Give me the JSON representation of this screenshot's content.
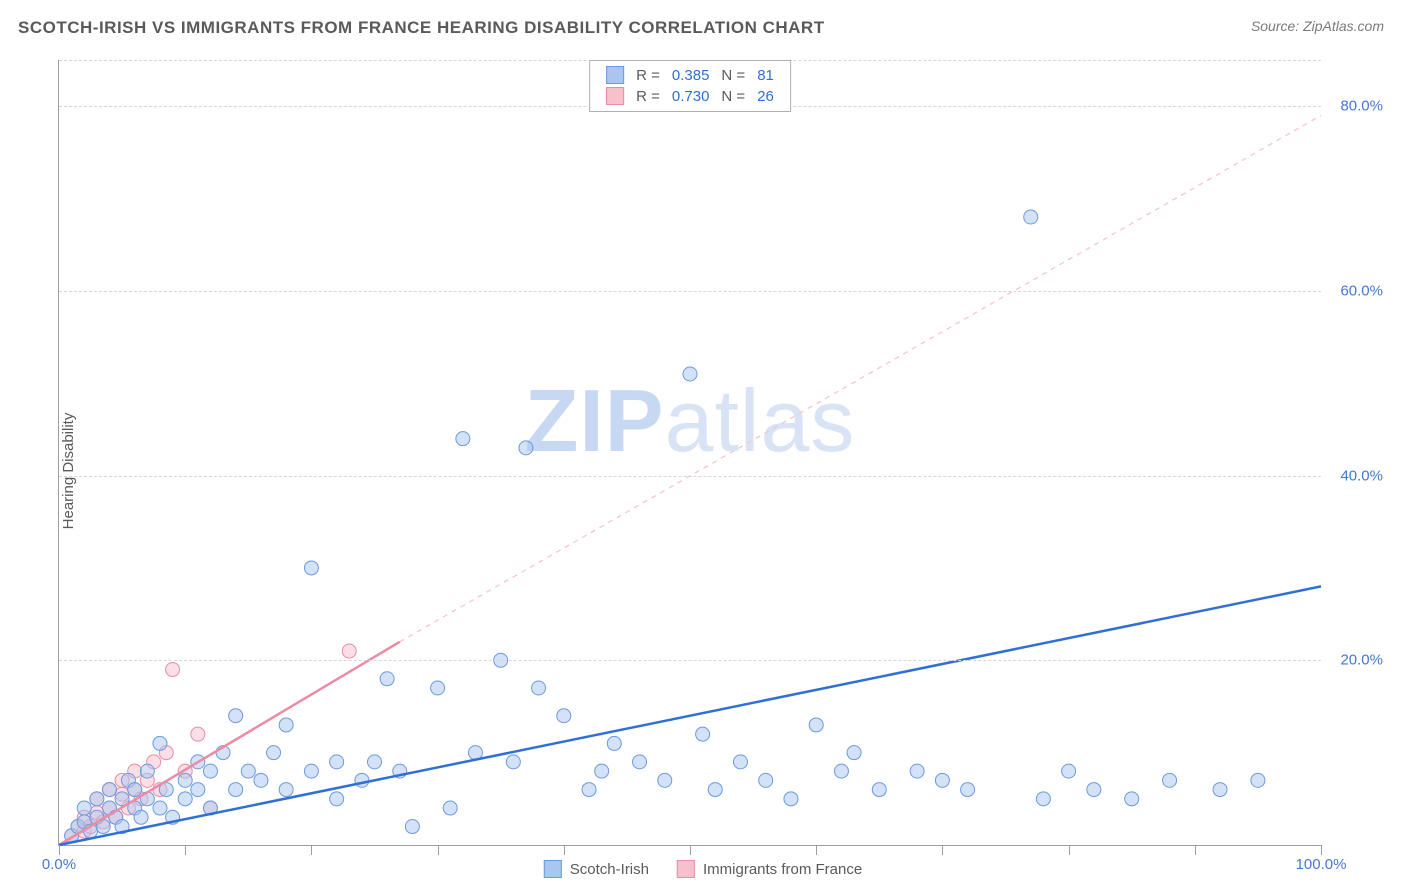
{
  "title": "SCOTCH-IRISH VS IMMIGRANTS FROM FRANCE HEARING DISABILITY CORRELATION CHART",
  "source": "Source: ZipAtlas.com",
  "ylabel": "Hearing Disability",
  "watermark": {
    "bold": "ZIP",
    "rest": "atlas"
  },
  "chart": {
    "type": "scatter",
    "xlim": [
      0,
      100
    ],
    "ylim": [
      0,
      85
    ],
    "yticks": [
      20,
      40,
      60,
      80
    ],
    "ytick_labels": [
      "20.0%",
      "40.0%",
      "60.0%",
      "80.0%"
    ],
    "xtick_positions": [
      0,
      10,
      20,
      30,
      40,
      50,
      60,
      70,
      80,
      90,
      100
    ],
    "xtick_labels_shown": {
      "0": "0.0%",
      "100": "100.0%"
    },
    "grid_color": "#d7d7d7",
    "axis_color": "#9e9e9e",
    "background": "#ffffff",
    "marker_radius": 7,
    "marker_opacity": 0.5,
    "series": [
      {
        "name": "Scotch-Irish",
        "color_fill": "#a9c6ef",
        "color_stroke": "#6a9ae0",
        "R": "0.385",
        "N": "81",
        "trend": {
          "color": "#2f6fd6",
          "width": 2.5,
          "dash": "none",
          "x1": 0,
          "y1": 0,
          "x2": 100,
          "y2": 28
        },
        "points": [
          [
            1,
            1
          ],
          [
            1.5,
            2
          ],
          [
            2,
            2.5
          ],
          [
            2,
            4
          ],
          [
            2.5,
            1.5
          ],
          [
            3,
            3
          ],
          [
            3,
            5
          ],
          [
            3.5,
            2
          ],
          [
            4,
            4
          ],
          [
            4,
            6
          ],
          [
            4.5,
            3
          ],
          [
            5,
            5
          ],
          [
            5,
            2
          ],
          [
            5.5,
            7
          ],
          [
            6,
            4
          ],
          [
            6,
            6
          ],
          [
            6.5,
            3
          ],
          [
            7,
            5
          ],
          [
            7,
            8
          ],
          [
            8,
            11
          ],
          [
            8,
            4
          ],
          [
            8.5,
            6
          ],
          [
            9,
            3
          ],
          [
            10,
            7
          ],
          [
            10,
            5
          ],
          [
            11,
            9
          ],
          [
            11,
            6
          ],
          [
            12,
            4
          ],
          [
            12,
            8
          ],
          [
            13,
            10
          ],
          [
            14,
            6
          ],
          [
            14,
            14
          ],
          [
            15,
            8
          ],
          [
            16,
            7
          ],
          [
            17,
            10
          ],
          [
            18,
            6
          ],
          [
            18,
            13
          ],
          [
            20,
            8
          ],
          [
            20,
            30
          ],
          [
            22,
            9
          ],
          [
            22,
            5
          ],
          [
            24,
            7
          ],
          [
            25,
            9
          ],
          [
            26,
            18
          ],
          [
            27,
            8
          ],
          [
            28,
            2
          ],
          [
            30,
            17
          ],
          [
            31,
            4
          ],
          [
            32,
            44
          ],
          [
            33,
            10
          ],
          [
            35,
            20
          ],
          [
            36,
            9
          ],
          [
            37,
            43
          ],
          [
            38,
            17
          ],
          [
            40,
            14
          ],
          [
            42,
            6
          ],
          [
            43,
            8
          ],
          [
            44,
            11
          ],
          [
            46,
            9
          ],
          [
            48,
            7
          ],
          [
            50,
            51
          ],
          [
            51,
            12
          ],
          [
            52,
            6
          ],
          [
            54,
            9
          ],
          [
            56,
            7
          ],
          [
            58,
            5
          ],
          [
            60,
            13
          ],
          [
            62,
            8
          ],
          [
            63,
            10
          ],
          [
            65,
            6
          ],
          [
            68,
            8
          ],
          [
            70,
            7
          ],
          [
            72,
            6
          ],
          [
            77,
            68
          ],
          [
            78,
            5
          ],
          [
            80,
            8
          ],
          [
            82,
            6
          ],
          [
            85,
            5
          ],
          [
            88,
            7
          ],
          [
            92,
            6
          ],
          [
            95,
            7
          ]
        ]
      },
      {
        "name": "Immigrants from France",
        "color_fill": "#f6c1cd",
        "color_stroke": "#ec8ba4",
        "R": "0.730",
        "N": "26",
        "trend": {
          "color": "#ec8ba4",
          "width": 2.5,
          "dash": "none",
          "x1": 0,
          "y1": 0,
          "x2": 27,
          "y2": 22
        },
        "trend_ext": {
          "color": "#f6c1cd",
          "width": 1.2,
          "dash": "5,5",
          "x1": 27,
          "y1": 22,
          "x2": 100,
          "y2": 79
        },
        "points": [
          [
            1,
            1
          ],
          [
            1.5,
            2
          ],
          [
            2,
            1.5
          ],
          [
            2,
            3
          ],
          [
            2.5,
            2
          ],
          [
            3,
            3.5
          ],
          [
            3,
            5
          ],
          [
            3.5,
            2.5
          ],
          [
            4,
            4
          ],
          [
            4,
            6
          ],
          [
            4.5,
            3
          ],
          [
            5,
            5.5
          ],
          [
            5,
            7
          ],
          [
            5.5,
            4
          ],
          [
            6,
            6
          ],
          [
            6,
            8
          ],
          [
            6.5,
            5
          ],
          [
            7,
            7
          ],
          [
            7.5,
            9
          ],
          [
            8,
            6
          ],
          [
            8.5,
            10
          ],
          [
            9,
            19
          ],
          [
            10,
            8
          ],
          [
            11,
            12
          ],
          [
            12,
            4
          ],
          [
            23,
            21
          ]
        ]
      }
    ],
    "legend_top": {
      "rlabel": "R =",
      "nlabel": "N ="
    },
    "legend_bottom": [
      {
        "label": "Scotch-Irish",
        "fill": "#a9c6ef",
        "stroke": "#6a9ae0"
      },
      {
        "label": "Immigrants from France",
        "fill": "#f6c1cd",
        "stroke": "#ec8ba4"
      }
    ]
  }
}
